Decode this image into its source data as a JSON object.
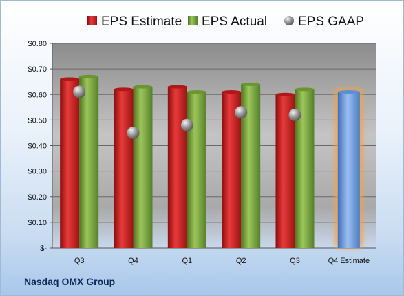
{
  "company_name": "Nasdaq OMX Group",
  "colors": {
    "estimate": "#d42020",
    "actual": "#7aa53a",
    "gaap": "#9a9a9a",
    "q4_estimate": "#6e9fe0",
    "q4_estimate_glow": "#f2a24a"
  },
  "chart_data": {
    "type": "bar",
    "categories": [
      "Q3",
      "Q4",
      "Q1",
      "Q2",
      "Q3",
      "Q4 Estimate"
    ],
    "series": [
      {
        "name": "EPS Estimate",
        "values": [
          0.66,
          0.62,
          0.63,
          0.61,
          0.6,
          null
        ]
      },
      {
        "name": "EPS Actual",
        "values": [
          0.67,
          0.63,
          0.61,
          0.64,
          0.62,
          null
        ]
      },
      {
        "name": "EPS GAAP",
        "values": [
          0.61,
          0.45,
          0.48,
          0.53,
          0.52,
          null
        ]
      }
    ],
    "q4_estimate_value": 0.61,
    "y_ticks": [
      0,
      0.1,
      0.2,
      0.3,
      0.4,
      0.5,
      0.6,
      0.7,
      0.8
    ],
    "y_tick_labels": [
      "$-",
      "$0.10",
      "$0.20",
      "$0.30",
      "$0.40",
      "$0.50",
      "$0.60",
      "$0.70",
      "$0.80"
    ],
    "ylim": [
      0,
      0.8
    ],
    "grid": true,
    "legend_position": "top"
  }
}
